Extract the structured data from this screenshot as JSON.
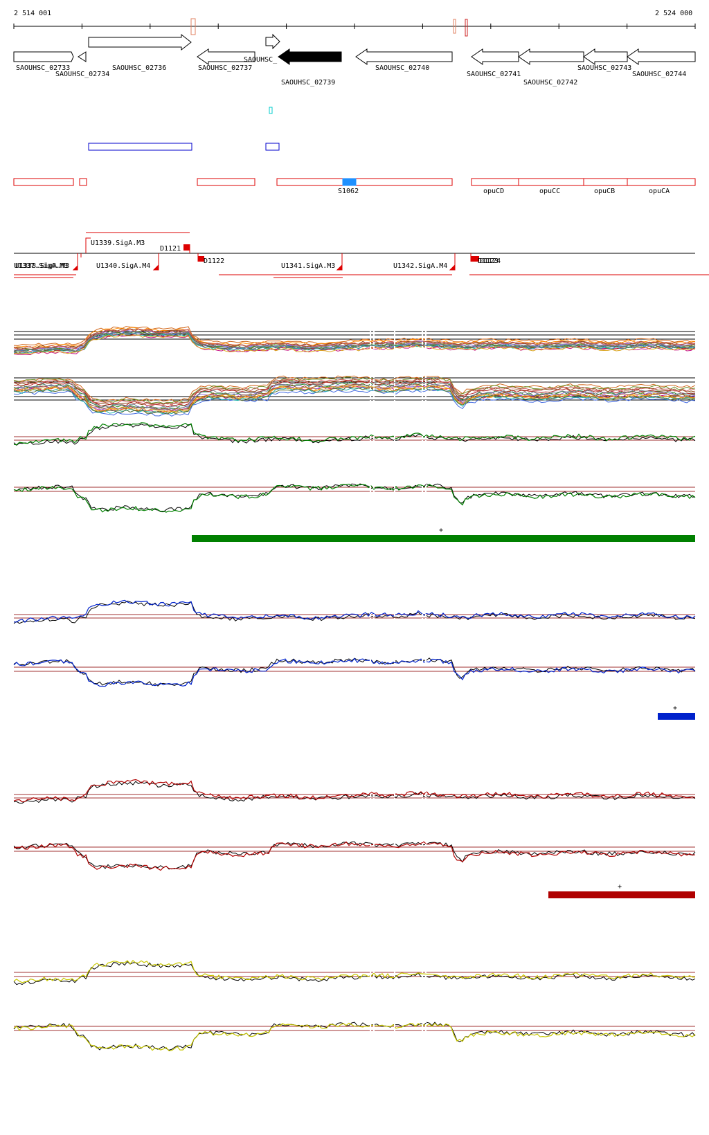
{
  "ruler": {
    "start_label": "2 514 001",
    "end_label": "2 524 000"
  },
  "genes": [
    {
      "id": "SAOUHSC_02733",
      "strand": "+",
      "filled": false
    },
    {
      "id": "SAOUHSC_02734",
      "strand": "-",
      "filled": false
    },
    {
      "id": "SAOUHSC_02736",
      "strand": "+",
      "filled": false
    },
    {
      "id": "SAOUHSC_02737",
      "strand": "-",
      "filled": false
    },
    {
      "id": "SAOUHSC_",
      "strand": "+",
      "filled": false
    },
    {
      "id": "SAOUHSC_02739",
      "strand": "-",
      "filled": true
    },
    {
      "id": "SAOUHSC_02740",
      "strand": "-",
      "filled": false
    },
    {
      "id": "SAOUHSC_02741",
      "strand": "-",
      "filled": false
    },
    {
      "id": "SAOUHSC_02742",
      "strand": "-",
      "filled": false
    },
    {
      "id": "SAOUHSC_02743",
      "strand": "-",
      "filled": false
    },
    {
      "id": "SAOUHSC_02744",
      "strand": "-",
      "filled": false
    }
  ],
  "annotation_labels": [
    "S1062",
    "opuCD",
    "opuCC",
    "opuCB",
    "opuCA"
  ],
  "promoter_labels": [
    "U1339.SigA.M3",
    "D1121",
    "D1122",
    "U1337.SigA.M3",
    "U1338.SigA.M3",
    "U1340.SigA.M4",
    "U1341.SigA.M3",
    "U1342.SigA.M4",
    "D1123",
    "D1124"
  ],
  "segment_markers": {
    "green": "+",
    "blue": "+",
    "red": "+"
  },
  "colors": {
    "gene_outline": "#000000",
    "gene_filled": "#000000",
    "feature_red": "#dd0000",
    "feature_blue": "#0000cc",
    "feature_cyan": "#00cccc",
    "s1062_fill": "#1e90ff",
    "track_green": "#008000",
    "track_blue": "#0022cc",
    "track_red": "#b00000",
    "track_yellow": "#c8c800",
    "reference_line": "#a03030"
  }
}
